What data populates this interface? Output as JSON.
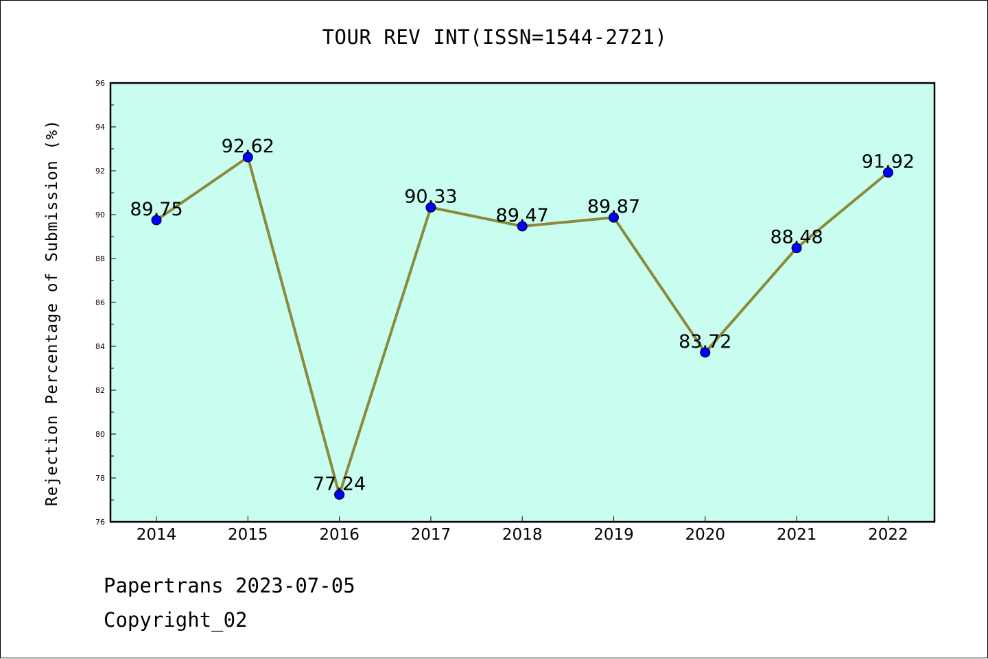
{
  "chart_data": {
    "type": "line",
    "title": "TOUR REV INT(ISSN=1544-2721)",
    "xlabel": "",
    "ylabel": "Rejection Percentage of Submission (%)",
    "categories": [
      "2014",
      "2015",
      "2016",
      "2017",
      "2018",
      "2019",
      "2020",
      "2021",
      "2022"
    ],
    "series": [
      {
        "values": [
          89.75,
          92.62,
          77.24,
          90.33,
          89.47,
          89.87,
          83.72,
          88.48,
          91.92
        ],
        "labels": [
          "89.75",
          "92.62",
          "77.24",
          "90.33",
          "89.47",
          "89.87",
          "83.72",
          "88.48",
          "91.92"
        ]
      }
    ],
    "ylim": [
      76,
      96
    ],
    "yticks": [
      "76",
      "78",
      "80",
      "82",
      "84",
      "86",
      "88",
      "90",
      "92",
      "94",
      "96"
    ],
    "grid": false,
    "colors": {
      "plot_background": "#c8fdef",
      "line": "#8b8a3a",
      "marker": "#0000ff"
    }
  },
  "footer": {
    "line1": "Papertrans 2023-07-05",
    "line2": "Copyright_02"
  }
}
